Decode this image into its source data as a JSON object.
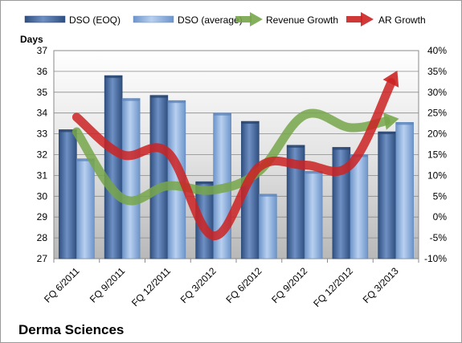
{
  "chart_data": {
    "type": "bar",
    "title": "Derma Sciences",
    "ylabel": "Days",
    "categories": [
      "FQ 6/2011",
      "FQ 9/2011",
      "FQ 12/2011",
      "FQ 3/2012",
      "FQ 6/2012",
      "FQ 9/2012",
      "FQ 12/2012",
      "FQ 3/2013"
    ],
    "ylim": [
      27,
      37
    ],
    "yticks": [
      27,
      28,
      29,
      30,
      31,
      32,
      33,
      34,
      35,
      36,
      37
    ],
    "y2lim": [
      -10,
      40
    ],
    "y2ticks": [
      "-10%",
      "-5%",
      "0%",
      "5%",
      "10%",
      "15%",
      "20%",
      "25%",
      "30%",
      "35%",
      "40%"
    ],
    "series": [
      {
        "name": "DSO (EOQ)",
        "kind": "bar",
        "axis": "left",
        "color": "#4a6ea8",
        "values": [
          33.2,
          35.8,
          34.85,
          30.7,
          33.6,
          32.45,
          32.35,
          33.1
        ]
      },
      {
        "name": "DSO (average)",
        "kind": "bar",
        "axis": "left",
        "color": "#8fb4e3",
        "values": [
          31.8,
          34.7,
          34.6,
          34.0,
          30.1,
          31.2,
          32.0,
          33.55
        ]
      },
      {
        "name": "Revenue Growth",
        "kind": "line",
        "axis": "right",
        "color": "#77a64a",
        "values": [
          20.5,
          4.5,
          7.5,
          6.5,
          11.0,
          24.5,
          21.5,
          23.5
        ]
      },
      {
        "name": "AR Growth",
        "kind": "line",
        "axis": "right",
        "color": "#cc2222",
        "values": [
          24.0,
          15.0,
          15.5,
          -4.5,
          12.0,
          12.5,
          12.5,
          34.5
        ]
      }
    ],
    "grid": true,
    "legend": "top"
  }
}
